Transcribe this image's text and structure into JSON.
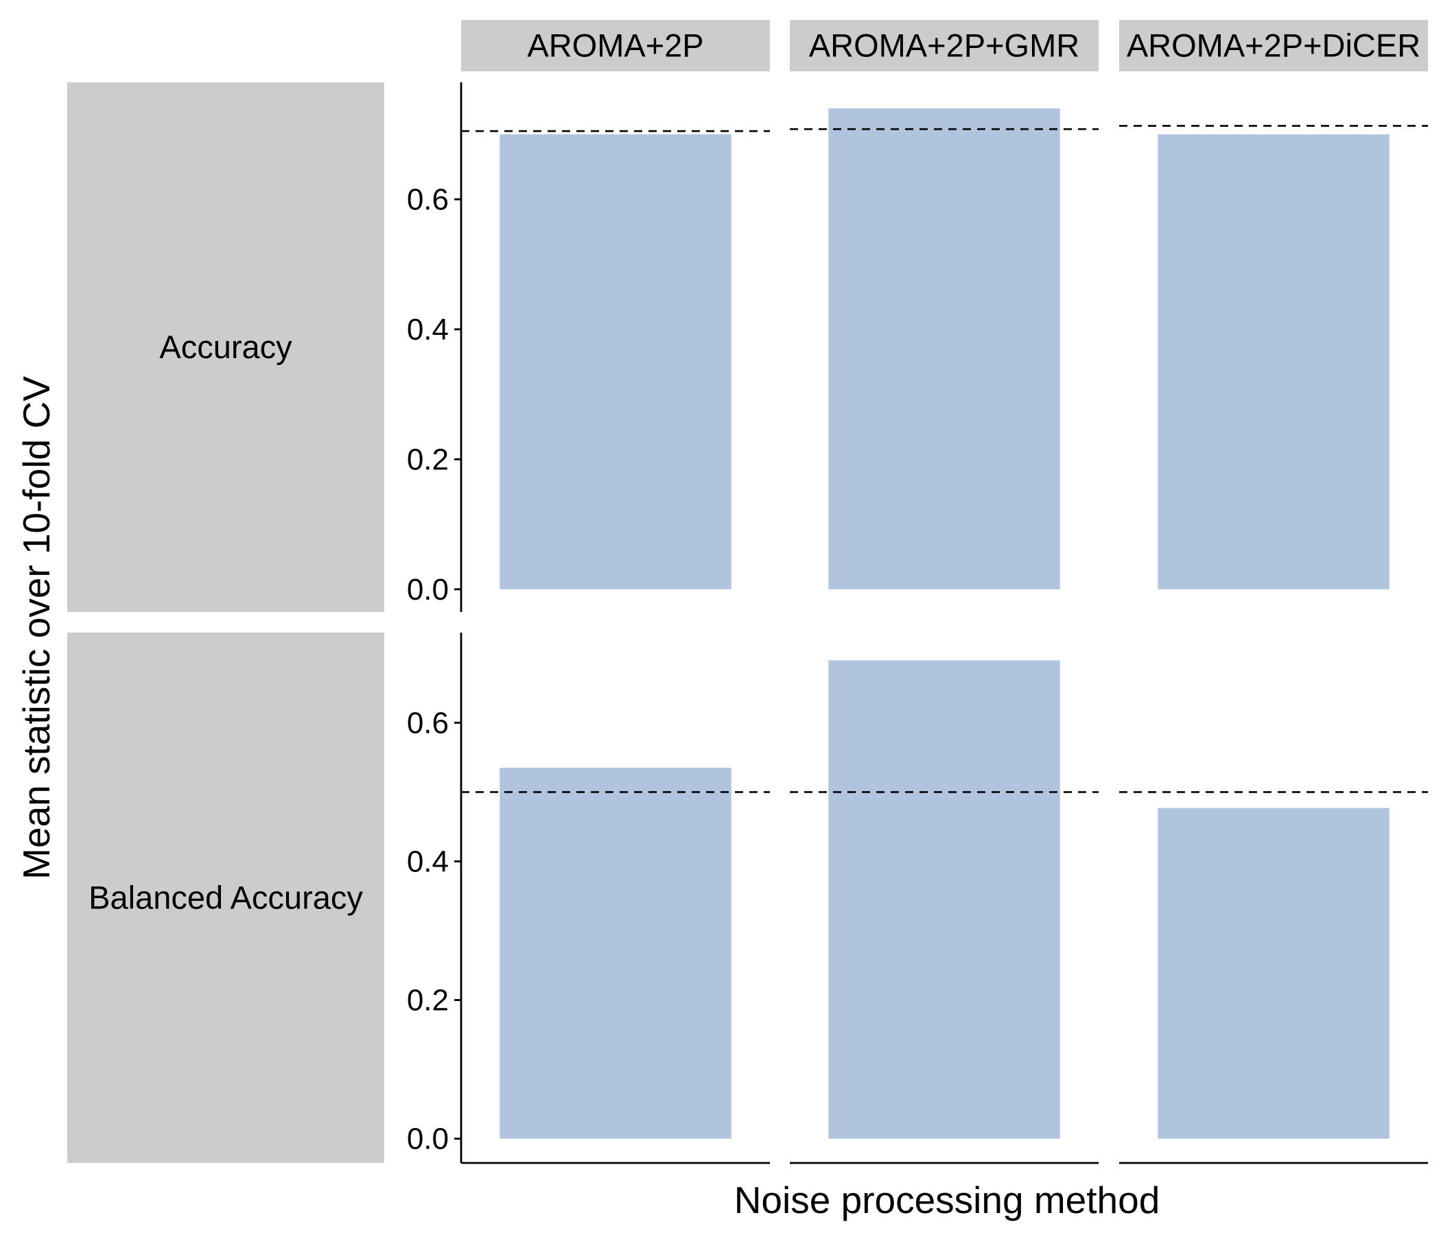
{
  "chart_data": {
    "type": "bar",
    "xlabel": "Noise processing method",
    "ylabel": "Mean statistic over 10-fold CV",
    "categories": [
      "AROMA+2P",
      "AROMA+2P+GMR",
      "AROMA+2P+DiCER"
    ],
    "facet_rows": [
      {
        "label": "Accuracy",
        "values": [
          0.7,
          0.74,
          0.7
        ],
        "reference_lines": [
          0.705,
          0.708,
          0.713
        ],
        "ylim": [
          -0.035,
          0.78
        ],
        "yticks": [
          0.0,
          0.2,
          0.4,
          0.6
        ],
        "ytick_labels": [
          "0.0",
          "0.2",
          "0.4",
          "0.6"
        ]
      },
      {
        "label": "Balanced Accuracy",
        "values": [
          0.535,
          0.69,
          0.477
        ],
        "reference_lines": [
          0.5,
          0.5,
          0.5
        ],
        "ylim": [
          -0.035,
          0.73
        ],
        "yticks": [
          0.0,
          0.2,
          0.4,
          0.6
        ],
        "ytick_labels": [
          "0.0",
          "0.2",
          "0.4",
          "0.6"
        ]
      }
    ],
    "grid": false,
    "bar_color": "#b0c4de",
    "strip_color": "#cccccc",
    "reference_line_style": "dashed"
  }
}
